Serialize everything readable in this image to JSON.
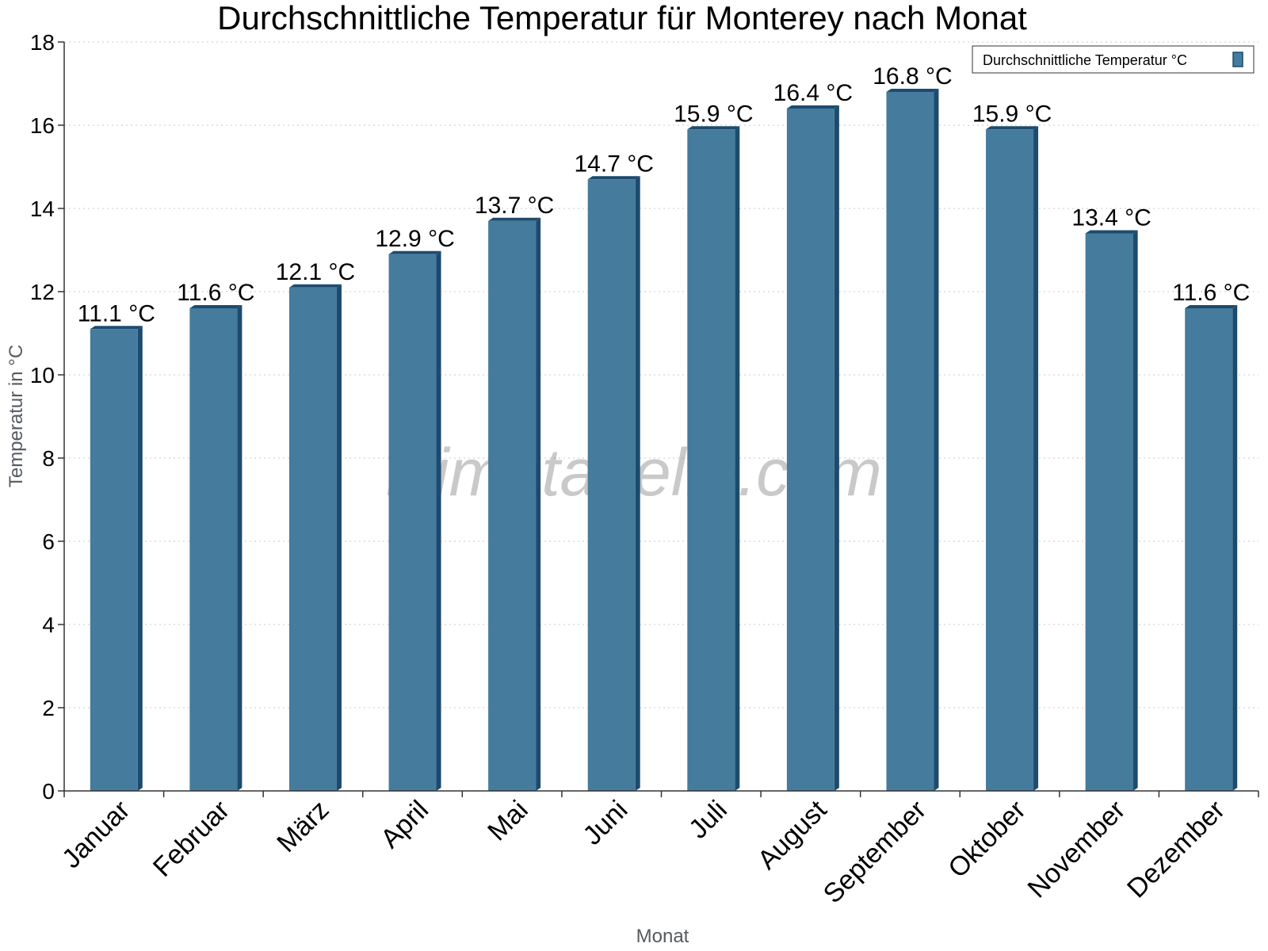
{
  "chart_data": {
    "type": "bar",
    "title": "Durchschnittliche Temperatur für Monterey nach Monat",
    "xlabel": "Monat",
    "ylabel": "Temperatur in °C",
    "categories": [
      "Januar",
      "Februar",
      "März",
      "April",
      "Mai",
      "Juni",
      "Juli",
      "August",
      "September",
      "Oktober",
      "November",
      "Dezember"
    ],
    "series": [
      {
        "name": "Durchschnittliche Temperatur °C",
        "values": [
          11.1,
          11.6,
          12.1,
          12.9,
          13.7,
          14.7,
          15.9,
          16.4,
          16.8,
          15.9,
          13.4,
          11.6
        ],
        "labels": [
          "11.1 °C",
          "11.6 °C",
          "12.1 °C",
          "12.9 °C",
          "13.7 °C",
          "14.7 °C",
          "15.9 °C",
          "16.4 °C",
          "16.8 °C",
          "15.9 °C",
          "13.4 °C",
          "11.6 °C"
        ]
      }
    ],
    "ylim": [
      0,
      18
    ],
    "yticks": [
      0,
      2,
      4,
      6,
      8,
      10,
      12,
      14,
      16,
      18
    ],
    "grid": true,
    "legend_position": "top-right",
    "colors": {
      "bar": "#457b9d",
      "bar_side": "#1d4b6e",
      "bar_top": "#1d4b6e"
    }
  },
  "watermark": "klimatabelle.com"
}
